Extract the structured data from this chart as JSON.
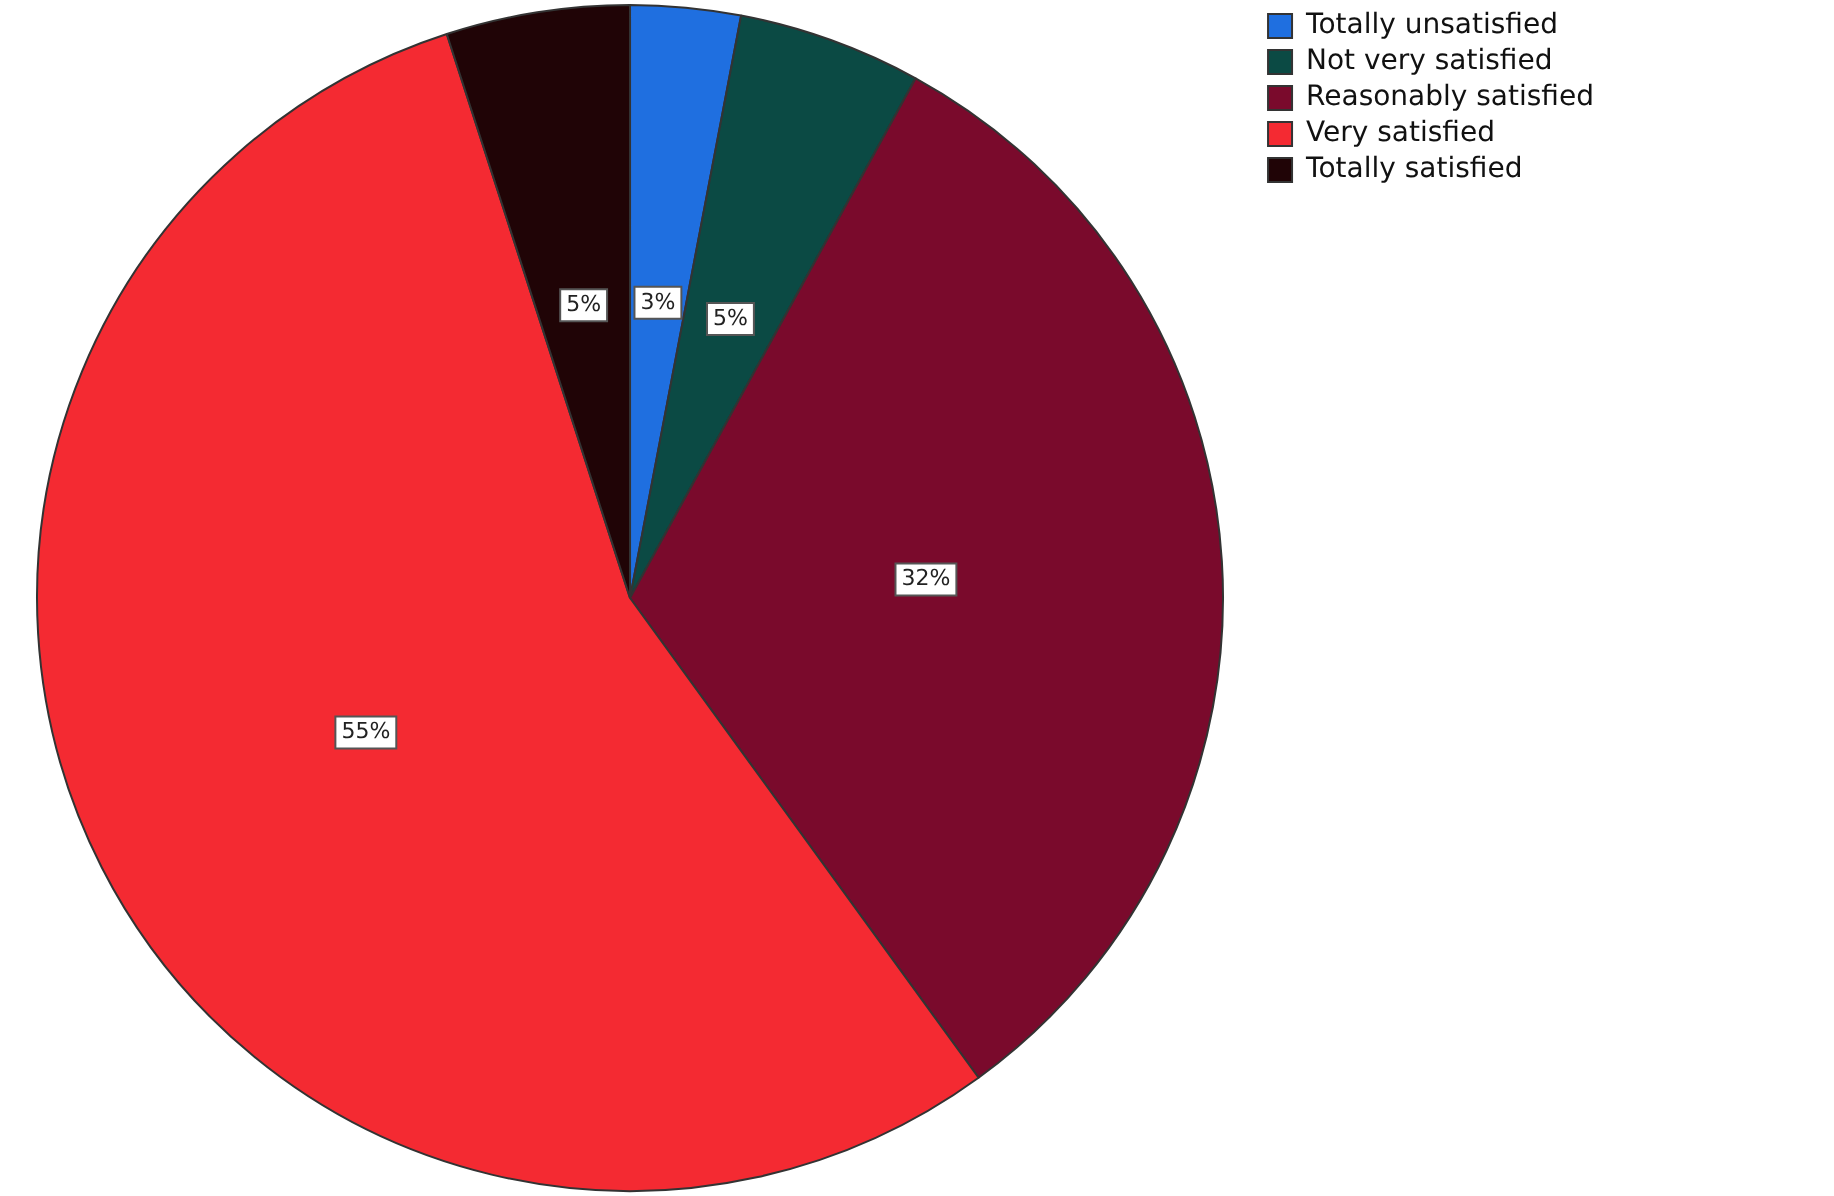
{
  "chart_data": {
    "type": "pie",
    "categories": [
      "Totally unsatisfied",
      "Not very satisfied",
      "Reasonably satisfied",
      "Very satisfied",
      "Totally satisfied"
    ],
    "values": [
      3,
      5,
      32,
      55,
      5
    ],
    "colors": [
      "#1f6fe0",
      "#0b4a44",
      "#7a0a2c",
      "#f42a32",
      "#200406"
    ],
    "value_labels": [
      "3%",
      "5%",
      "32%",
      "55%",
      "5%"
    ],
    "legend": "top right"
  }
}
